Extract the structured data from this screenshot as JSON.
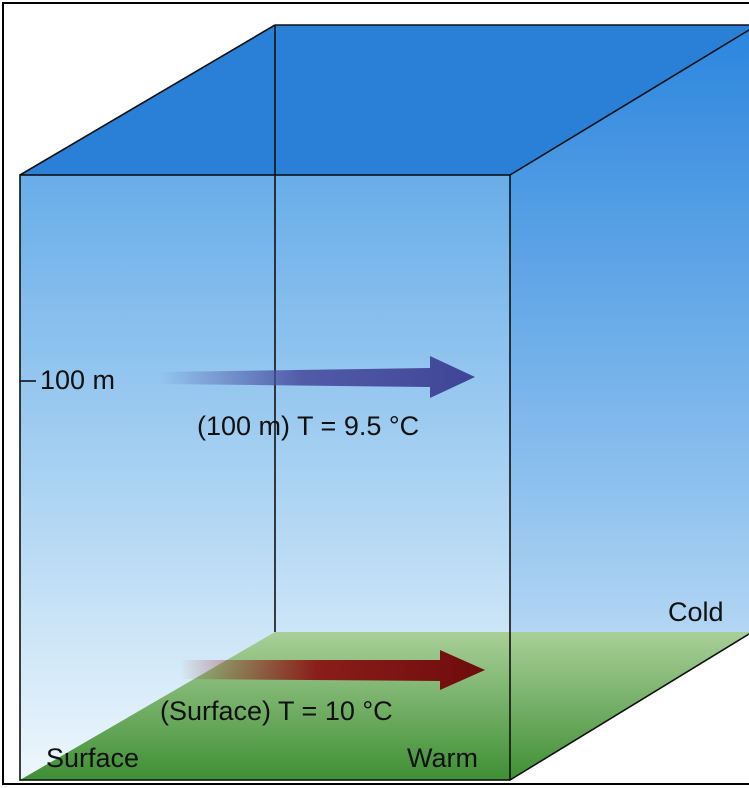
{
  "labels": {
    "depth_marker": "100 m",
    "upper_temp": "(100 m) T = 9.5 °C",
    "surface_temp": "(Surface) T = 10 °C",
    "surface": "Surface",
    "warm": "Warm",
    "cold": "Cold"
  }
}
